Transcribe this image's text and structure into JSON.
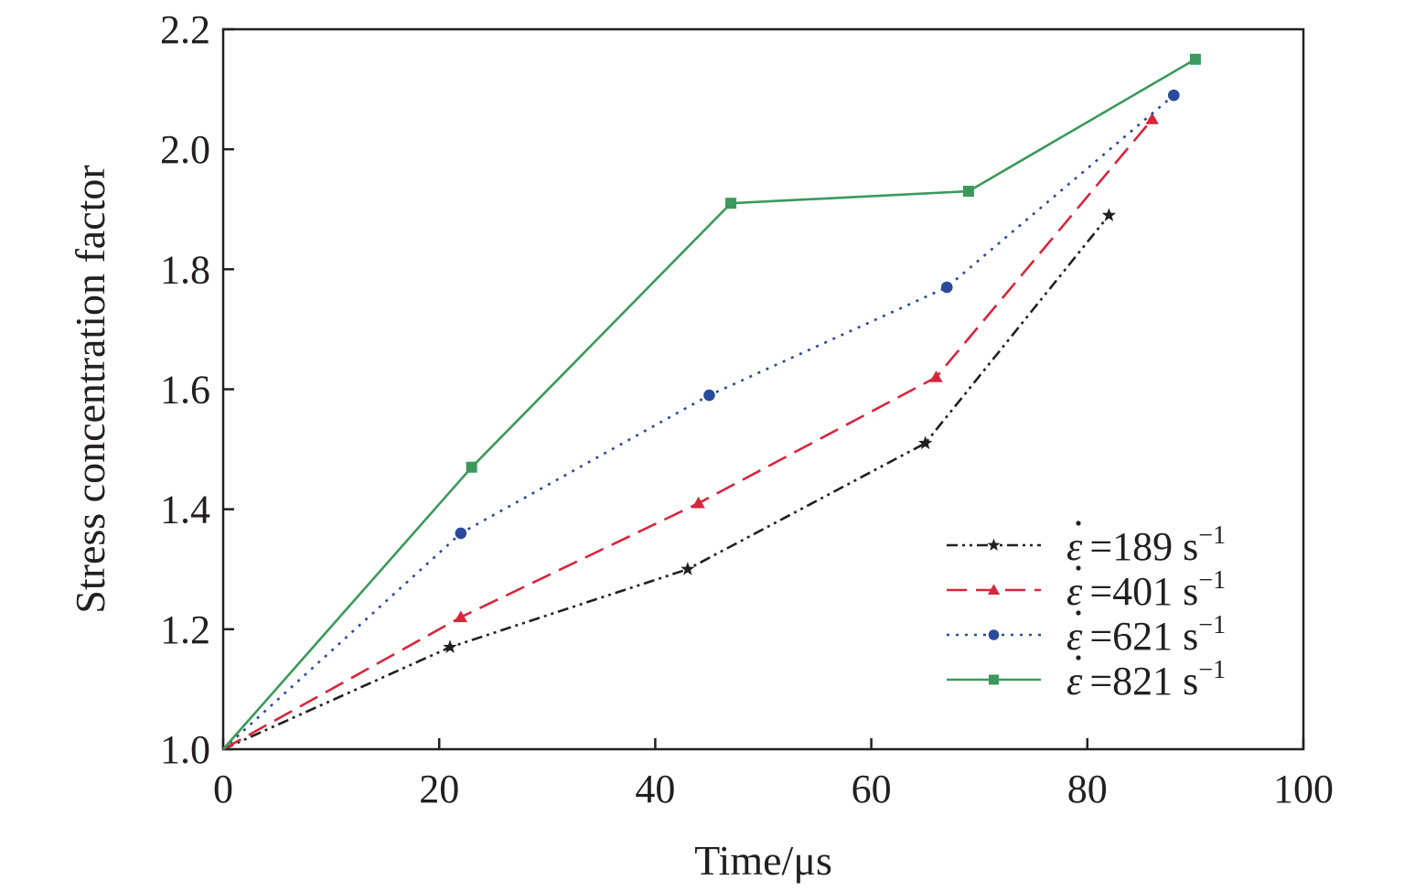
{
  "chart_data": {
    "type": "line",
    "title": "",
    "xlabel": "Time/μs",
    "ylabel": "Stress concentration factor",
    "xlim": [
      0,
      100
    ],
    "ylim": [
      1.0,
      2.2
    ],
    "xticks": [
      0,
      20,
      40,
      60,
      80,
      100
    ],
    "yticks": [
      1.0,
      1.2,
      1.4,
      1.6,
      1.8,
      2.0,
      2.2
    ],
    "xtick_labels": [
      "0",
      "20",
      "40",
      "60",
      "80",
      "100"
    ],
    "ytick_labels": [
      "1.0",
      "1.2",
      "1.4",
      "1.6",
      "1.8",
      "2.0",
      "2.2"
    ],
    "grid": false,
    "legend_position": "bottom-right",
    "series": [
      {
        "name": "ε̇ =189 s−1",
        "symbol": "ε",
        "value_label": "=189 s",
        "unit_exponent": "−1",
        "color": "#231f20",
        "line_style": "dash-dot-dot",
        "marker": "star",
        "x": [
          0,
          21,
          43,
          65,
          82
        ],
        "y": [
          1.0,
          1.17,
          1.3,
          1.51,
          1.89
        ]
      },
      {
        "name": "ε̇ =401 s−1",
        "symbol": "ε",
        "value_label": "=401 s",
        "unit_exponent": "−1",
        "color": "#d7263d",
        "line_style": "dashed",
        "marker": "triangle",
        "x": [
          0,
          22,
          44,
          66,
          86
        ],
        "y": [
          1.0,
          1.22,
          1.41,
          1.62,
          2.05
        ]
      },
      {
        "name": "ε̇ =621 s−1",
        "symbol": "ε",
        "value_label": "=621 s",
        "unit_exponent": "−1",
        "color": "#2a4a9b",
        "line_style": "dotted",
        "marker": "circle",
        "x": [
          0,
          22,
          45,
          67,
          88
        ],
        "y": [
          1.0,
          1.36,
          1.59,
          1.77,
          2.09
        ]
      },
      {
        "name": "ε̇ =821 s−1",
        "symbol": "ε",
        "value_label": "=821 s",
        "unit_exponent": "−1",
        "color": "#3a9a5b",
        "line_style": "solid",
        "marker": "square",
        "x": [
          0,
          23,
          47,
          69,
          90
        ],
        "y": [
          1.0,
          1.47,
          1.91,
          1.93,
          2.15
        ]
      }
    ]
  }
}
